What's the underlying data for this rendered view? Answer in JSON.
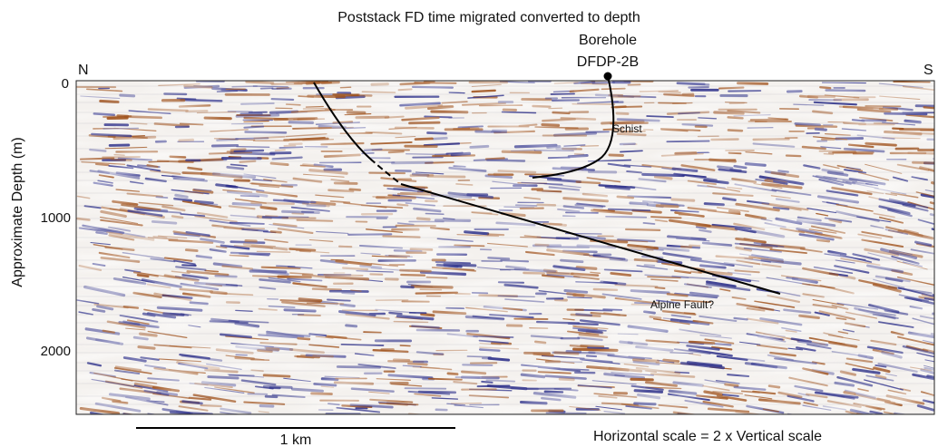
{
  "figure": {
    "title": "Poststack FD time migrated converted to depth",
    "ylabel": "Approximate Depth (m)",
    "yticks": [
      "0",
      "1000",
      "2000"
    ],
    "direction_left": "N",
    "direction_right": "S",
    "borehole_label": "Borehole",
    "borehole_name": "DFDP-2B",
    "schist_label": "Schist",
    "fault_label": "Alpine Fault?",
    "scale_bar_label": "1 km",
    "scale_note": "Horizontal scale = 2 x Vertical scale"
  },
  "colors": {
    "positive": "#a0521c",
    "negative": "#2c2f8a",
    "background": "#ffffff",
    "lines": "#000000"
  }
}
